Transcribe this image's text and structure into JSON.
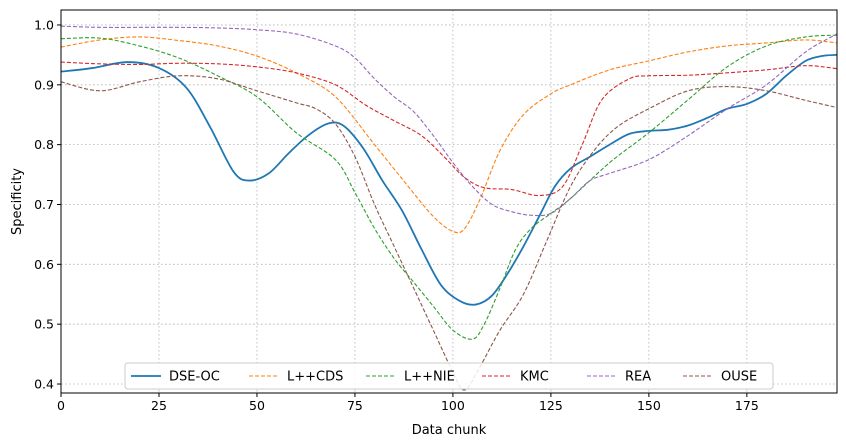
{
  "chart_data": {
    "type": "line",
    "xlabel": "Data chunk",
    "ylabel": "Specificity",
    "xlim": [
      0,
      198
    ],
    "ylim": [
      0.385,
      1.025
    ],
    "xticks": [
      0,
      25,
      50,
      75,
      100,
      125,
      150,
      175
    ],
    "yticks": [
      0.4,
      0.5,
      0.6,
      0.7,
      0.8,
      0.9,
      1.0
    ],
    "grid": true,
    "legend_placement": "bottom-center",
    "series": [
      {
        "name": "DSE-OC",
        "color": "#1f77b4",
        "dash": "solid",
        "x": [
          0,
          8,
          17,
          25,
          32,
          38,
          44,
          48,
          53,
          58,
          63,
          68,
          72,
          77,
          82,
          87,
          92,
          97,
          102,
          106,
          110,
          114,
          118,
          122,
          126,
          130,
          135,
          140,
          145,
          150,
          155,
          160,
          165,
          170,
          175,
          180,
          185,
          190,
          194,
          198
        ],
        "y": [
          0.922,
          0.928,
          0.938,
          0.928,
          0.895,
          0.83,
          0.755,
          0.74,
          0.752,
          0.785,
          0.815,
          0.835,
          0.832,
          0.795,
          0.74,
          0.69,
          0.625,
          0.565,
          0.538,
          0.533,
          0.548,
          0.585,
          0.63,
          0.68,
          0.73,
          0.76,
          0.78,
          0.8,
          0.818,
          0.823,
          0.825,
          0.832,
          0.845,
          0.86,
          0.868,
          0.885,
          0.915,
          0.94,
          0.948,
          0.95
        ]
      },
      {
        "name": "L++CDS",
        "color": "#ff7f0e",
        "dash": "dashed",
        "x": [
          0,
          10,
          20,
          30,
          40,
          50,
          60,
          70,
          80,
          88,
          95,
          100,
          103,
          107,
          112,
          118,
          125,
          130,
          140,
          150,
          160,
          170,
          180,
          190,
          198
        ],
        "y": [
          0.963,
          0.975,
          0.98,
          0.974,
          0.965,
          0.948,
          0.92,
          0.88,
          0.8,
          0.735,
          0.68,
          0.655,
          0.66,
          0.71,
          0.79,
          0.85,
          0.885,
          0.9,
          0.925,
          0.94,
          0.955,
          0.965,
          0.97,
          0.975,
          0.97
        ]
      },
      {
        "name": "L++NIE",
        "color": "#2ca02c",
        "dash": "dashed",
        "x": [
          0,
          10,
          20,
          30,
          40,
          50,
          60,
          70,
          75,
          80,
          85,
          90,
          95,
          100,
          105,
          108,
          112,
          116,
          120,
          125,
          130,
          140,
          150,
          160,
          170,
          180,
          190,
          198
        ],
        "y": [
          0.977,
          0.978,
          0.965,
          0.945,
          0.915,
          0.88,
          0.82,
          0.775,
          0.72,
          0.66,
          0.61,
          0.57,
          0.53,
          0.49,
          0.475,
          0.5,
          0.56,
          0.625,
          0.66,
          0.685,
          0.71,
          0.77,
          0.82,
          0.875,
          0.93,
          0.965,
          0.98,
          0.983
        ]
      },
      {
        "name": "KMC",
        "color": "#d62728",
        "dash": "dashed",
        "x": [
          0,
          10,
          20,
          30,
          40,
          50,
          60,
          70,
          78,
          85,
          92,
          98,
          103,
          108,
          115,
          122,
          128,
          133,
          138,
          145,
          150,
          160,
          170,
          180,
          190,
          198
        ],
        "y": [
          0.938,
          0.935,
          0.934,
          0.936,
          0.935,
          0.93,
          0.92,
          0.9,
          0.865,
          0.84,
          0.815,
          0.778,
          0.745,
          0.728,
          0.725,
          0.715,
          0.73,
          0.8,
          0.875,
          0.91,
          0.915,
          0.916,
          0.92,
          0.925,
          0.932,
          0.927
        ]
      },
      {
        "name": "REA",
        "color": "#9467bd",
        "dash": "dashed",
        "x": [
          0,
          10,
          20,
          30,
          40,
          50,
          60,
          70,
          75,
          80,
          85,
          90,
          95,
          100,
          105,
          110,
          115,
          120,
          125,
          130,
          135,
          140,
          150,
          160,
          170,
          180,
          190,
          198
        ],
        "y": [
          0.998,
          0.996,
          0.996,
          0.996,
          0.995,
          0.992,
          0.985,
          0.965,
          0.945,
          0.91,
          0.88,
          0.855,
          0.815,
          0.77,
          0.73,
          0.7,
          0.688,
          0.682,
          0.685,
          0.71,
          0.74,
          0.752,
          0.775,
          0.815,
          0.86,
          0.9,
          0.955,
          0.985
        ]
      },
      {
        "name": "OUSE",
        "color": "#8c564b",
        "dash": "dashed",
        "x": [
          0,
          10,
          20,
          30,
          40,
          50,
          60,
          65,
          70,
          75,
          80,
          85,
          90,
          95,
          100,
          103,
          107,
          112,
          118,
          124,
          130,
          136,
          142,
          150,
          160,
          170,
          180,
          190,
          198
        ],
        "y": [
          0.905,
          0.89,
          0.905,
          0.915,
          0.91,
          0.89,
          0.87,
          0.86,
          0.835,
          0.78,
          0.7,
          0.63,
          0.56,
          0.49,
          0.42,
          0.39,
          0.43,
          0.49,
          0.55,
          0.64,
          0.73,
          0.79,
          0.83,
          0.86,
          0.89,
          0.897,
          0.89,
          0.874,
          0.862
        ]
      }
    ]
  }
}
